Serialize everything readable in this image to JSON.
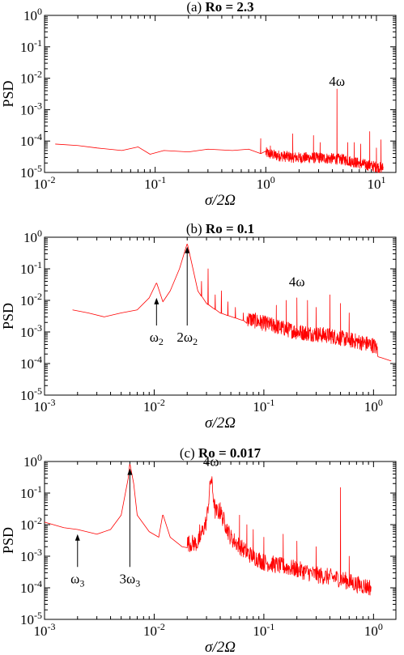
{
  "chart_data": [
    {
      "type": "line",
      "panel_label": "(a)",
      "title": "Ro = 2.3",
      "xlabel": "σ/2Ω",
      "ylabel": "PSD",
      "xscale": "log",
      "yscale": "log",
      "xlim": [
        0.01,
        15
      ],
      "ylim": [
        1e-05,
        1
      ],
      "x_ticks": [
        {
          "value": 0.01,
          "base": "10",
          "exp": "-2"
        },
        {
          "value": 0.1,
          "base": "10",
          "exp": "-1"
        },
        {
          "value": 1,
          "base": "10",
          "exp": "0"
        },
        {
          "value": 10,
          "base": "10",
          "exp": "1"
        }
      ],
      "y_ticks": [
        {
          "value": 1e-05,
          "base": "10",
          "exp": "-5"
        },
        {
          "value": 0.0001,
          "base": "10",
          "exp": "-4"
        },
        {
          "value": 0.001,
          "base": "10",
          "exp": "-3"
        },
        {
          "value": 0.01,
          "base": "10",
          "exp": "-2"
        },
        {
          "value": 0.1,
          "base": "10",
          "exp": "-1"
        },
        {
          "value": 1,
          "base": "10",
          "exp": "0"
        }
      ],
      "series": [
        {
          "color": "#ff0000",
          "baseline": [
            [
              0.0125,
              8e-05
            ],
            [
              0.02,
              7.2e-05
            ],
            [
              0.03,
              6e-05
            ],
            [
              0.05,
              5e-05
            ],
            [
              0.07,
              6.5e-05
            ],
            [
              0.09,
              3.8e-05
            ],
            [
              0.12,
              5e-05
            ],
            [
              0.2,
              4.5e-05
            ],
            [
              0.3,
              5.5e-05
            ],
            [
              0.5,
              5e-05
            ],
            [
              0.7,
              5.5e-05
            ],
            [
              0.9,
              4e-05
            ],
            [
              1.2,
              3e-05
            ],
            [
              2,
              2.5e-05
            ],
            [
              3,
              2.5e-05
            ],
            [
              5,
              2.2e-05
            ],
            [
              8,
              1.5e-05
            ],
            [
              11,
              1.2e-05
            ]
          ],
          "peaks": [
            [
              0.9,
              0.00012
            ],
            [
              1.1,
              7e-05
            ],
            [
              1.75,
              0.00017
            ],
            [
              2.7,
              0.00015
            ],
            [
              3.1,
              9e-05
            ],
            [
              4.4,
              0.0045
            ],
            [
              5.5,
              9e-05
            ],
            [
              6.3,
              9e-05
            ],
            [
              7.2,
              8e-05
            ],
            [
              8.7,
              0.0002
            ],
            [
              10,
              6e-05
            ],
            [
              11,
              0.00011
            ]
          ],
          "noise_range": [
            1,
            11.5
          ],
          "noise_decades": 0.35
        }
      ],
      "annotations": [
        {
          "text": "4ω",
          "x": 4.4,
          "y": 0.004,
          "arrow": false
        }
      ]
    },
    {
      "type": "line",
      "panel_label": "(b)",
      "title": "Ro = 0.1",
      "xlabel": "σ/2Ω",
      "ylabel": "PSD",
      "xscale": "log",
      "yscale": "log",
      "xlim": [
        0.001,
        1.6
      ],
      "ylim": [
        1e-05,
        1
      ],
      "x_ticks": [
        {
          "value": 0.001,
          "base": "10",
          "exp": "-3"
        },
        {
          "value": 0.01,
          "base": "10",
          "exp": "-2"
        },
        {
          "value": 0.1,
          "base": "10",
          "exp": "-1"
        },
        {
          "value": 1,
          "base": "10",
          "exp": "0"
        }
      ],
      "y_ticks": [
        {
          "value": 1e-05,
          "base": "10",
          "exp": "-5"
        },
        {
          "value": 0.0001,
          "base": "10",
          "exp": "-4"
        },
        {
          "value": 0.001,
          "base": "10",
          "exp": "-3"
        },
        {
          "value": 0.01,
          "base": "10",
          "exp": "-2"
        },
        {
          "value": 0.1,
          "base": "10",
          "exp": "-1"
        },
        {
          "value": 1,
          "base": "10",
          "exp": "0"
        }
      ],
      "series": [
        {
          "color": "#ff0000",
          "baseline": [
            [
              0.0018,
              0.005
            ],
            [
              0.0025,
              0.004
            ],
            [
              0.0035,
              0.003
            ],
            [
              0.005,
              0.004
            ],
            [
              0.007,
              0.005
            ],
            [
              0.009,
              0.012
            ],
            [
              0.0105,
              0.035
            ],
            [
              0.012,
              0.009
            ],
            [
              0.014,
              0.02
            ],
            [
              0.017,
              0.1
            ],
            [
              0.02,
              0.6
            ],
            [
              0.022,
              0.15
            ],
            [
              0.025,
              0.02
            ],
            [
              0.03,
              0.008
            ],
            [
              0.04,
              0.004
            ],
            [
              0.06,
              0.0025
            ],
            [
              0.1,
              0.0015
            ],
            [
              0.2,
              0.0008
            ],
            [
              0.4,
              0.0006
            ],
            [
              0.7,
              0.0004
            ],
            [
              1.0,
              0.0003
            ],
            [
              1.2,
              0.00015
            ],
            [
              1.45,
              0.00012
            ]
          ],
          "peaks": [
            [
              0.0105,
              0.035
            ],
            [
              0.02,
              0.6
            ],
            [
              0.027,
              0.04
            ],
            [
              0.031,
              0.1
            ],
            [
              0.036,
              0.015
            ],
            [
              0.041,
              0.02
            ],
            [
              0.047,
              0.009
            ],
            [
              0.055,
              0.006
            ],
            [
              0.065,
              0.004
            ],
            [
              0.08,
              0.003
            ],
            [
              0.1,
              0.003
            ],
            [
              0.13,
              0.007
            ],
            [
              0.16,
              0.01
            ],
            [
              0.2,
              0.012
            ],
            [
              0.25,
              0.01
            ],
            [
              0.3,
              0.006
            ],
            [
              0.4,
              0.015
            ],
            [
              0.5,
              0.008
            ],
            [
              0.6,
              0.004
            ]
          ],
          "noise_range": [
            0.07,
            1.1
          ],
          "noise_decades": 0.5
        }
      ],
      "annotations": [
        {
          "text": "4ω",
          "x": 0.2,
          "y": 0.02,
          "arrow": false
        },
        {
          "text": "ω",
          "sub": "2",
          "x": 0.0105,
          "y": 0.012,
          "arrow": true,
          "label_y": 0.0007
        },
        {
          "text": "2ω",
          "sub": "2",
          "x": 0.02,
          "y": 0.5,
          "arrow": true,
          "label_y": 0.0007
        }
      ]
    },
    {
      "type": "line",
      "panel_label": "(c)",
      "title": "Ro = 0.017",
      "xlabel": "σ/2Ω",
      "ylabel": "PSD",
      "xscale": "log",
      "yscale": "log",
      "xlim": [
        0.001,
        1.6
      ],
      "ylim": [
        1e-05,
        1
      ],
      "x_ticks": [
        {
          "value": 0.001,
          "base": "10",
          "exp": "-3"
        },
        {
          "value": 0.01,
          "base": "10",
          "exp": "-2"
        },
        {
          "value": 0.1,
          "base": "10",
          "exp": "-1"
        },
        {
          "value": 1,
          "base": "10",
          "exp": "0"
        }
      ],
      "y_ticks": [
        {
          "value": 1e-05,
          "base": "10",
          "exp": "-5"
        },
        {
          "value": 0.0001,
          "base": "10",
          "exp": "-4"
        },
        {
          "value": 0.001,
          "base": "10",
          "exp": "-3"
        },
        {
          "value": 0.01,
          "base": "10",
          "exp": "-2"
        },
        {
          "value": 0.1,
          "base": "10",
          "exp": "-1"
        },
        {
          "value": 1,
          "base": "10",
          "exp": "0"
        }
      ],
      "series": [
        {
          "color": "#ff0000",
          "baseline": [
            [
              0.001,
              0.012
            ],
            [
              0.0015,
              0.008
            ],
            [
              0.002,
              0.007
            ],
            [
              0.003,
              0.005
            ],
            [
              0.004,
              0.007
            ],
            [
              0.005,
              0.02
            ],
            [
              0.0058,
              0.3
            ],
            [
              0.006,
              0.8
            ],
            [
              0.0065,
              0.2
            ],
            [
              0.007,
              0.02
            ],
            [
              0.009,
              0.006
            ],
            [
              0.011,
              0.004
            ],
            [
              0.012,
              0.02
            ],
            [
              0.014,
              0.004
            ],
            [
              0.018,
              0.002
            ],
            [
              0.025,
              0.002
            ],
            [
              0.03,
              0.01
            ],
            [
              0.033,
              0.25
            ],
            [
              0.036,
              0.02
            ],
            [
              0.04,
              0.02
            ],
            [
              0.05,
              0.003
            ],
            [
              0.07,
              0.001
            ],
            [
              0.1,
              0.0005
            ],
            [
              0.2,
              0.0003
            ],
            [
              0.3,
              0.0002
            ],
            [
              0.5,
              0.00015
            ],
            [
              0.7,
              0.0001
            ],
            [
              0.95,
              8e-05
            ]
          ],
          "peaks": [
            [
              0.006,
              0.8
            ],
            [
              0.012,
              0.02
            ],
            [
              0.026,
              0.01
            ],
            [
              0.033,
              0.25
            ],
            [
              0.04,
              0.05
            ],
            [
              0.045,
              0.01
            ],
            [
              0.06,
              0.02
            ],
            [
              0.07,
              0.01
            ],
            [
              0.08,
              0.007
            ],
            [
              0.1,
              0.004
            ],
            [
              0.15,
              0.005
            ],
            [
              0.2,
              0.003
            ],
            [
              0.3,
              0.002
            ],
            [
              0.5,
              0.15
            ],
            [
              0.6,
              0.001
            ]
          ],
          "noise_range": [
            0.02,
            0.95
          ],
          "noise_decades": 0.55
        }
      ],
      "annotations": [
        {
          "text": "4ω",
          "x": 0.033,
          "y": 0.5,
          "arrow": false
        },
        {
          "text": "ω",
          "sub": "3",
          "x": 0.002,
          "y": 0.005,
          "arrow": true,
          "label_y": 0.0002
        },
        {
          "text": "3ω",
          "sub": "3",
          "x": 0.006,
          "y": 0.6,
          "arrow": true,
          "label_y": 0.0002
        }
      ]
    }
  ]
}
